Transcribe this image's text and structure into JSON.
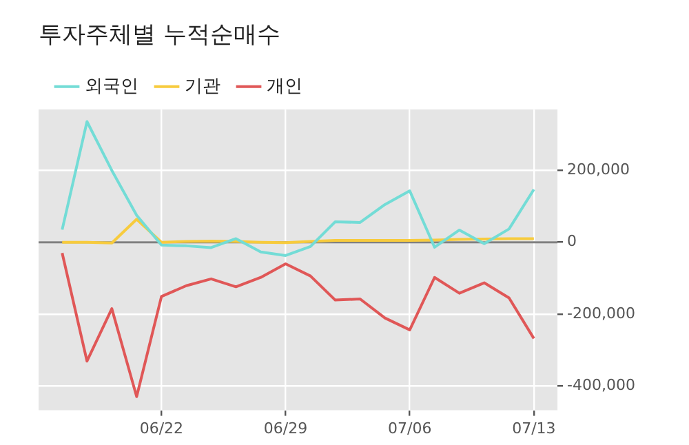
{
  "chart_data": {
    "type": "line",
    "title": "투자주체별 누적순매수",
    "categories": [
      null,
      null,
      null,
      null,
      "06/22",
      null,
      null,
      null,
      null,
      "06/29",
      null,
      null,
      null,
      null,
      "07/06",
      null,
      null,
      null,
      null,
      "07/13"
    ],
    "series": [
      {
        "name": "외국인",
        "color": "#73dcd6",
        "values": [
          35000,
          336000,
          200000,
          75000,
          -8000,
          -10000,
          -15000,
          10000,
          -27000,
          -37000,
          -12000,
          57000,
          55000,
          105000,
          143000,
          -14000,
          34000,
          -4000,
          37000,
          147000
        ]
      },
      {
        "name": "기관",
        "color": "#f7cb3d",
        "values": [
          0,
          0,
          -2000,
          64000,
          0,
          2000,
          3000,
          2000,
          0,
          -1000,
          2000,
          5000,
          5000,
          5000,
          5000,
          6000,
          8000,
          9000,
          10000,
          10000
        ]
      },
      {
        "name": "개인",
        "color": "#e05757",
        "values": [
          -30000,
          -331000,
          -185000,
          -430000,
          -151000,
          -121000,
          -102000,
          -124000,
          -98000,
          -60000,
          -94000,
          -161000,
          -158000,
          -211000,
          -244000,
          -98000,
          -142000,
          -113000,
          -155000,
          -268000
        ]
      }
    ],
    "ylim": [
      -468000,
      370000
    ],
    "yticks": [
      {
        "value": -400000,
        "label": "-400,000"
      },
      {
        "value": -200000,
        "label": "-200,000"
      },
      {
        "value": 0,
        "label": "0"
      },
      {
        "value": 200000,
        "label": "200,000"
      }
    ],
    "ref_lines": [
      {
        "axis": "y",
        "value": 0,
        "color": "#808080"
      }
    ],
    "grid": true,
    "legend": "top left",
    "marker": "none",
    "line_style": "solid"
  }
}
